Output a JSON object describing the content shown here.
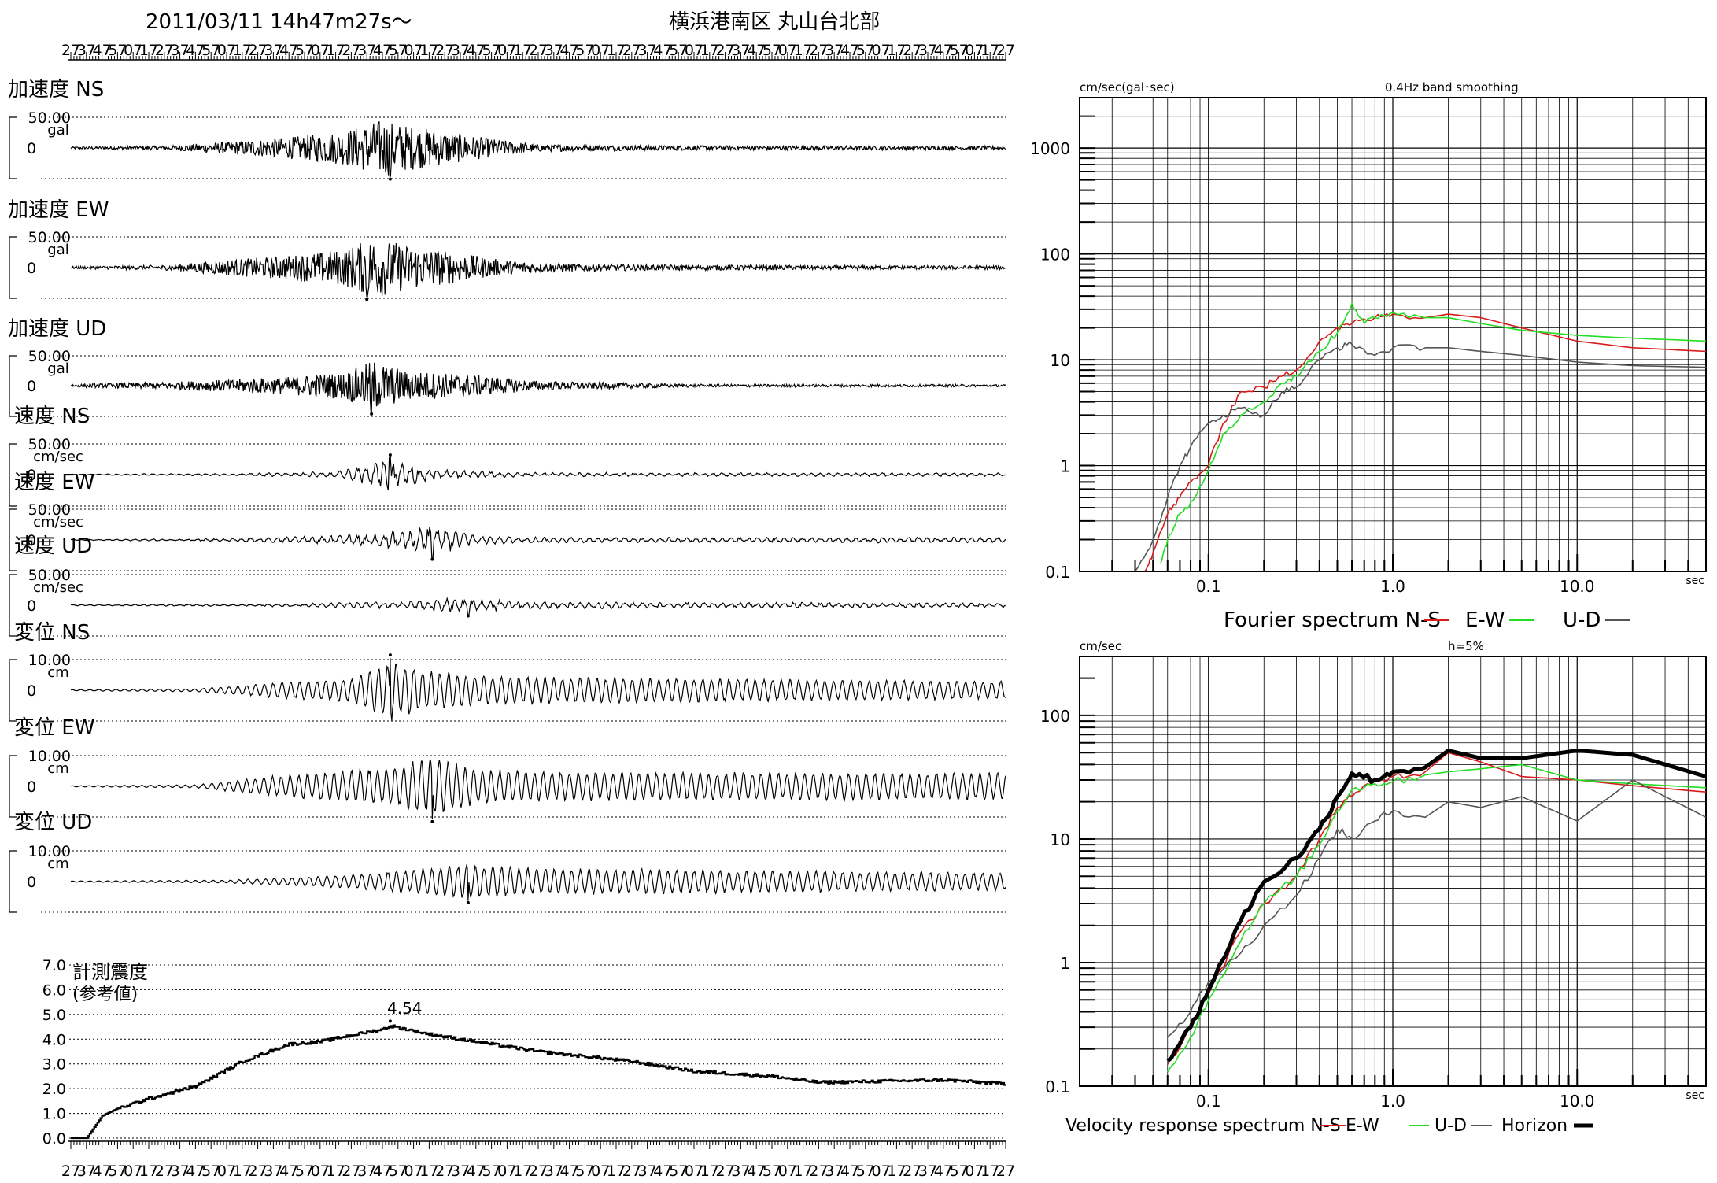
{
  "header": {
    "datetime": "2011/03/11  14h47m27s～",
    "station": "横浜港南区 丸山台北部"
  },
  "time_tick_labels": [
    "27",
    "37",
    "47",
    "57",
    "07",
    "17",
    "27",
    "37",
    "47",
    "57",
    "07",
    "17",
    "27",
    "37",
    "47",
    "57",
    "07",
    "17",
    "27",
    "37",
    "47",
    "57",
    "07",
    "17",
    "27",
    "37",
    "47",
    "57",
    "07",
    "17",
    "27",
    "37",
    "47",
    "57",
    "07",
    "17",
    "27",
    "37",
    "47",
    "57",
    "07",
    "17",
    "27",
    "37",
    "47",
    "57",
    "07",
    "17",
    "27",
    "37",
    "47",
    "57",
    "07",
    "17",
    "27",
    "37",
    "47",
    "57",
    "07",
    "17",
    "27",
    "37",
    "47",
    "57",
    "07",
    "17",
    "27",
    "37",
    "47",
    "57",
    "07",
    "17",
    "27",
    "37",
    "47",
    "57",
    "07",
    "17",
    "27",
    "37",
    "47",
    "57",
    "07",
    "17",
    "27",
    "37",
    "47",
    "57",
    "07",
    "17",
    "27",
    "37",
    "47",
    "57",
    "07",
    "17",
    "27",
    "37",
    "47",
    "57",
    "07",
    "17",
    "27",
    "37",
    "47",
    "57",
    "07",
    "17",
    "27",
    "37",
    "47",
    "57",
    "07",
    "17",
    "27",
    "37",
    "47",
    "57",
    "07",
    "17",
    "27"
  ],
  "intensity_panel": {
    "title": "計測震度",
    "subtitle": "(参考値)",
    "yticks": [
      "7.0",
      "6.0",
      "5.0",
      "4.0",
      "3.0",
      "2.0",
      "1.0",
      "0.0"
    ],
    "peak_label": "4.54"
  },
  "fourier_panel": {
    "ylabel": "cm/sec(gal･sec)",
    "smoothing": "0.4Hz band smoothing",
    "yticks": [
      "1000",
      "100",
      "10",
      "1",
      "0.1"
    ],
    "xticks": [
      "0.1",
      "1.0",
      "10.0"
    ],
    "xunit": "sec",
    "caption": "Fourier spectrum  N-S",
    "legend_ew": "E-W",
    "legend_ud": "U-D"
  },
  "velocity_panel": {
    "ylabel": "cm/sec",
    "damping": "h=5%",
    "yticks": [
      "100",
      "10",
      "1",
      "0.1"
    ],
    "xticks": [
      "0.1",
      "1.0",
      "10.0"
    ],
    "xunit": "sec",
    "caption": "Velocity response spectrum N-S",
    "legend_ew": "E-W",
    "legend_ud": "U-D",
    "legend_h": "Horizon"
  },
  "chart_data": [
    {
      "type": "line",
      "subtype": "seismogram",
      "traces": [
        {
          "label": "加速度 NS",
          "scale": "50.00",
          "unit": "gal",
          "zero": "0",
          "peak_time_s": 205,
          "peak_sign": -1,
          "envelope": [
            [
              0,
              0.04
            ],
            [
              60,
              0.07
            ],
            [
              100,
              0.2
            ],
            [
              140,
              0.35
            ],
            [
              175,
              0.55
            ],
            [
              200,
              0.95
            ],
            [
              215,
              0.75
            ],
            [
              240,
              0.55
            ],
            [
              270,
              0.3
            ],
            [
              300,
              0.12
            ],
            [
              360,
              0.08
            ],
            [
              500,
              0.07
            ],
            [
              600,
              0.06
            ]
          ],
          "period": "short"
        },
        {
          "label": "加速度 EW",
          "scale": "50.00",
          "unit": "gal",
          "zero": "0",
          "peak_time_s": 190,
          "peak_sign": -1,
          "envelope": [
            [
              0,
              0.04
            ],
            [
              60,
              0.08
            ],
            [
              100,
              0.25
            ],
            [
              140,
              0.4
            ],
            [
              175,
              0.6
            ],
            [
              195,
              1.0
            ],
            [
              215,
              0.75
            ],
            [
              240,
              0.55
            ],
            [
              270,
              0.3
            ],
            [
              300,
              0.15
            ],
            [
              360,
              0.1
            ],
            [
              500,
              0.07
            ],
            [
              600,
              0.06
            ]
          ],
          "period": "short"
        },
        {
          "label": "加速度 UD",
          "scale": "50.00",
          "unit": "gal",
          "zero": "0",
          "peak_time_s": 193,
          "peak_sign": -1,
          "envelope": [
            [
              0,
              0.05
            ],
            [
              60,
              0.12
            ],
            [
              100,
              0.2
            ],
            [
              140,
              0.3
            ],
            [
              175,
              0.45
            ],
            [
              195,
              0.85
            ],
            [
              215,
              0.5
            ],
            [
              260,
              0.35
            ],
            [
              300,
              0.15
            ],
            [
              400,
              0.05
            ],
            [
              600,
              0.04
            ]
          ],
          "period": "short"
        },
        {
          "label": "速度 NS",
          "scale": "50.00",
          "unit": "cm/sec",
          "zero": "0",
          "peak_time_s": 205,
          "peak_sign": 1,
          "envelope": [
            [
              0,
              0.02
            ],
            [
              100,
              0.04
            ],
            [
              170,
              0.1
            ],
            [
              205,
              0.55
            ],
            [
              230,
              0.2
            ],
            [
              260,
              0.12
            ],
            [
              300,
              0.07
            ],
            [
              600,
              0.06
            ]
          ],
          "period": "medium"
        },
        {
          "label": "速度 EW",
          "scale": "50.00",
          "unit": "cm/sec",
          "zero": "0",
          "peak_time_s": 232,
          "peak_sign": -1,
          "envelope": [
            [
              0,
              0.02
            ],
            [
              100,
              0.05
            ],
            [
              170,
              0.15
            ],
            [
              205,
              0.3
            ],
            [
              232,
              0.55
            ],
            [
              260,
              0.18
            ],
            [
              300,
              0.1
            ],
            [
              600,
              0.1
            ]
          ],
          "period": "medium"
        },
        {
          "label": "速度 UD",
          "scale": "50.00",
          "unit": "cm/sec",
          "zero": "0",
          "peak_time_s": 255,
          "peak_sign": -1,
          "envelope": [
            [
              0,
              0.02
            ],
            [
              120,
              0.04
            ],
            [
              180,
              0.1
            ],
            [
              220,
              0.14
            ],
            [
              255,
              0.3
            ],
            [
              290,
              0.12
            ],
            [
              600,
              0.08
            ]
          ],
          "period": "medium"
        },
        {
          "label": "変位 NS",
          "scale": "10.00",
          "unit": "cm",
          "zero": "0",
          "peak_time_s": 205,
          "peak_sign": 1,
          "envelope": [
            [
              0,
              0.02
            ],
            [
              80,
              0.05
            ],
            [
              130,
              0.25
            ],
            [
              180,
              0.4
            ],
            [
              205,
              1.0
            ],
            [
              230,
              0.7
            ],
            [
              260,
              0.5
            ],
            [
              300,
              0.45
            ],
            [
              600,
              0.3
            ]
          ],
          "period": "long"
        },
        {
          "label": "変位 EW",
          "scale": "10.00",
          "unit": "cm",
          "zero": "0",
          "peak_time_s": 232,
          "peak_sign": -1,
          "envelope": [
            [
              0,
              0.02
            ],
            [
              80,
              0.05
            ],
            [
              130,
              0.35
            ],
            [
              180,
              0.55
            ],
            [
              205,
              0.65
            ],
            [
              232,
              1.0
            ],
            [
              260,
              0.6
            ],
            [
              300,
              0.5
            ],
            [
              600,
              0.45
            ]
          ],
          "period": "long"
        },
        {
          "label": "変位 UD",
          "scale": "10.00",
          "unit": "cm",
          "zero": "0",
          "peak_time_s": 255,
          "peak_sign": -1,
          "envelope": [
            [
              0,
              0.02
            ],
            [
              100,
              0.05
            ],
            [
              160,
              0.18
            ],
            [
              220,
              0.4
            ],
            [
              255,
              0.6
            ],
            [
              300,
              0.45
            ],
            [
              600,
              0.3
            ]
          ],
          "period": "long"
        }
      ]
    },
    {
      "type": "line",
      "title": "計測震度 (参考値)",
      "ylim": [
        0,
        7
      ],
      "x_seconds": [
        0,
        10,
        20,
        30,
        50,
        80,
        110,
        140,
        160,
        175,
        200,
        205,
        230,
        260,
        300,
        360,
        400,
        450,
        480,
        520,
        560,
        600
      ],
      "y": [
        0,
        0.0,
        0.9,
        1.2,
        1.6,
        2.1,
        3.1,
        3.8,
        3.9,
        4.1,
        4.4,
        4.54,
        4.2,
        3.9,
        3.5,
        3.1,
        2.7,
        2.5,
        2.25,
        2.3,
        2.35,
        2.2
      ],
      "peak": 4.54
    },
    {
      "type": "line",
      "title": "Fourier spectrum",
      "xscale": "log",
      "yscale": "log",
      "xlim": [
        0.02,
        50
      ],
      "ylim": [
        0.1,
        3000
      ],
      "xlabel": "sec",
      "ylabel": "cm/sec(gal･sec)",
      "series": [
        {
          "name": "N-S",
          "color": "#d81b1b",
          "x": [
            0.045,
            0.05,
            0.06,
            0.07,
            0.08,
            0.1,
            0.12,
            0.15,
            0.2,
            0.25,
            0.3,
            0.4,
            0.5,
            0.6,
            0.8,
            1.0,
            1.5,
            2.0,
            3.0,
            5.0,
            10,
            20,
            50
          ],
          "y": [
            0.1,
            0.15,
            0.35,
            0.5,
            0.7,
            1.0,
            2.5,
            5,
            5.5,
            7,
            8,
            15,
            20,
            22,
            25,
            27,
            25,
            27,
            25,
            20,
            15,
            13,
            12
          ]
        },
        {
          "name": "E-W",
          "color": "#22dd22",
          "x": [
            0.055,
            0.06,
            0.07,
            0.08,
            0.1,
            0.12,
            0.15,
            0.2,
            0.25,
            0.3,
            0.4,
            0.5,
            0.6,
            0.7,
            0.8,
            1.0,
            1.5,
            2.0,
            3.0,
            5.0,
            10,
            20,
            50
          ],
          "y": [
            0.12,
            0.2,
            0.35,
            0.45,
            0.9,
            2,
            3,
            4,
            6,
            7,
            12,
            18,
            34,
            22,
            25,
            28,
            25,
            25,
            22,
            19,
            17,
            16,
            15
          ]
        },
        {
          "name": "U-D",
          "color": "#555555",
          "x": [
            0.04,
            0.05,
            0.06,
            0.07,
            0.08,
            0.1,
            0.12,
            0.15,
            0.2,
            0.25,
            0.3,
            0.4,
            0.5,
            0.6,
            0.8,
            1.0,
            1.5,
            2.0,
            3.0,
            5.0,
            10,
            20,
            50
          ],
          "y": [
            0.1,
            0.2,
            0.5,
            1.0,
            1.5,
            2.5,
            3.0,
            3.5,
            3.0,
            5.0,
            5.5,
            10,
            13,
            14,
            11,
            13,
            13,
            13,
            12,
            11,
            9.5,
            8.8,
            8.5
          ]
        }
      ]
    },
    {
      "type": "line",
      "title": "Velocity response spectrum",
      "xscale": "log",
      "yscale": "log",
      "xlim": [
        0.02,
        50
      ],
      "ylim": [
        0.1,
        300
      ],
      "xlabel": "sec",
      "ylabel": "cm/sec",
      "series": [
        {
          "name": "N-S",
          "color": "#d81b1b",
          "x": [
            0.06,
            0.08,
            0.1,
            0.15,
            0.2,
            0.3,
            0.4,
            0.5,
            0.6,
            0.8,
            1.0,
            1.5,
            2.0,
            3.0,
            5.0,
            10,
            20,
            50
          ],
          "y": [
            0.15,
            0.3,
            0.55,
            1.8,
            3.0,
            5.0,
            10,
            18,
            22,
            30,
            32,
            35,
            50,
            42,
            32,
            30,
            27,
            24
          ]
        },
        {
          "name": "E-W",
          "color": "#22dd22",
          "x": [
            0.06,
            0.08,
            0.1,
            0.15,
            0.2,
            0.3,
            0.4,
            0.5,
            0.6,
            0.8,
            1.0,
            1.5,
            2.0,
            3.0,
            5.0,
            10,
            20,
            50
          ],
          "y": [
            0.13,
            0.25,
            0.5,
            1.5,
            3.0,
            5.0,
            9,
            17,
            25,
            28,
            29,
            33,
            35,
            37,
            40,
            30,
            28,
            26
          ]
        },
        {
          "name": "U-D",
          "color": "#555555",
          "x": [
            0.06,
            0.08,
            0.1,
            0.15,
            0.2,
            0.3,
            0.4,
            0.5,
            0.6,
            0.8,
            1.0,
            1.5,
            2.0,
            3.0,
            5.0,
            10,
            20,
            50
          ],
          "y": [
            0.25,
            0.4,
            0.7,
            1.2,
            2.0,
            3.5,
            7,
            12,
            10,
            14,
            17,
            15,
            20,
            18,
            22,
            14,
            30,
            15
          ]
        },
        {
          "name": "Horizon",
          "color": "#000000",
          "x": [
            0.06,
            0.08,
            0.1,
            0.15,
            0.2,
            0.3,
            0.4,
            0.5,
            0.6,
            0.8,
            1.0,
            1.5,
            2.0,
            3.0,
            5.0,
            10,
            20,
            50
          ],
          "y": [
            0.16,
            0.3,
            0.6,
            2.2,
            4.5,
            7,
            12,
            22,
            34,
            30,
            35,
            38,
            52,
            45,
            45,
            52,
            48,
            32
          ]
        }
      ]
    }
  ]
}
